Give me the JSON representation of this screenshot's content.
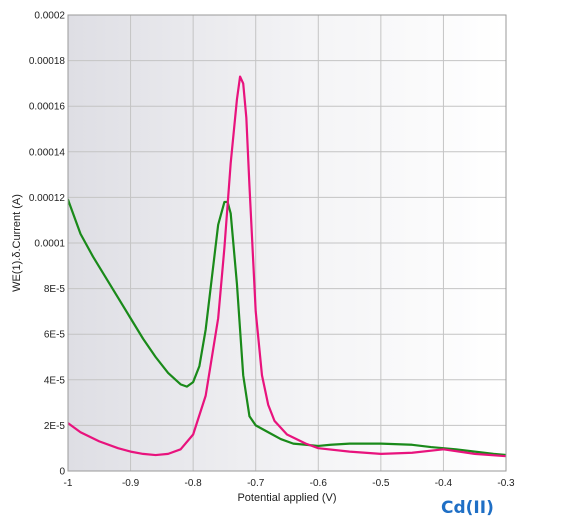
{
  "chart_data": {
    "type": "line",
    "xlabel": "Potential applied (V)",
    "ylabel": "WE(1).δ.Current (A)",
    "xlim": [
      -1.0,
      -0.3
    ],
    "ylim": [
      0,
      0.0002
    ],
    "x_ticks": [
      -1,
      -0.9,
      -0.8,
      -0.7,
      -0.6,
      -0.5,
      -0.4,
      -0.3
    ],
    "x_tick_labels": [
      "-1",
      "-0.9",
      "-0.8",
      "-0.7",
      "-0.6",
      "-0.5",
      "-0.4",
      "-0.3"
    ],
    "y_ticks": [
      0,
      2e-05,
      4e-05,
      6e-05,
      8e-05,
      0.0001,
      0.00012,
      0.00014,
      0.00016,
      0.00018,
      0.0002
    ],
    "y_tick_labels": [
      "0",
      "2E-5",
      "4E-5",
      "6E-5",
      "8E-5",
      "0.0001",
      "0.00012",
      "0.00014",
      "0.00016",
      "0.00018",
      "0.0002"
    ],
    "grid": true,
    "annotation": "Cd(II)",
    "annotation_color": "#1f6fc5",
    "series": [
      {
        "color": "#1a8a1a",
        "x": [
          -1.0,
          -0.98,
          -0.96,
          -0.94,
          -0.92,
          -0.9,
          -0.88,
          -0.86,
          -0.84,
          -0.82,
          -0.81,
          -0.8,
          -0.79,
          -0.78,
          -0.77,
          -0.76,
          -0.75,
          -0.745,
          -0.74,
          -0.73,
          -0.72,
          -0.71,
          -0.7,
          -0.68,
          -0.66,
          -0.64,
          -0.62,
          -0.6,
          -0.58,
          -0.55,
          -0.5,
          -0.45,
          -0.42,
          -0.4,
          -0.38,
          -0.35,
          -0.32,
          -0.3
        ],
        "y": [
          0.000119,
          0.000104,
          9.4e-05,
          8.5e-05,
          7.6e-05,
          6.7e-05,
          5.8e-05,
          5e-05,
          4.3e-05,
          3.8e-05,
          3.7e-05,
          3.9e-05,
          4.6e-05,
          6.2e-05,
          8.5e-05,
          0.000108,
          0.000118,
          0.000118,
          0.000113,
          8.2e-05,
          4.2e-05,
          2.4e-05,
          2e-05,
          1.7e-05,
          1.4e-05,
          1.2e-05,
          1.15e-05,
          1.1e-05,
          1.15e-05,
          1.2e-05,
          1.2e-05,
          1.15e-05,
          1.05e-05,
          1e-05,
          9.5e-06,
          8.5e-06,
          7.5e-06,
          7e-06
        ]
      },
      {
        "color": "#e8137d",
        "x": [
          -1.0,
          -0.98,
          -0.95,
          -0.92,
          -0.9,
          -0.88,
          -0.86,
          -0.84,
          -0.82,
          -0.8,
          -0.78,
          -0.76,
          -0.75,
          -0.74,
          -0.73,
          -0.725,
          -0.72,
          -0.715,
          -0.71,
          -0.7,
          -0.69,
          -0.68,
          -0.67,
          -0.65,
          -0.62,
          -0.6,
          -0.55,
          -0.5,
          -0.45,
          -0.4,
          -0.35,
          -0.3
        ],
        "y": [
          2.1e-05,
          1.7e-05,
          1.3e-05,
          1e-05,
          8.5e-06,
          7.5e-06,
          7e-06,
          7.5e-06,
          9.5e-06,
          1.6e-05,
          3.3e-05,
          6.7e-05,
          9.8e-05,
          0.000135,
          0.000163,
          0.000173,
          0.00017,
          0.000155,
          0.000125,
          7e-05,
          4.2e-05,
          2.9e-05,
          2.2e-05,
          1.6e-05,
          1.2e-05,
          1e-05,
          8.5e-06,
          7.5e-06,
          8e-06,
          9.5e-06,
          7.5e-06,
          6.5e-06
        ]
      }
    ]
  }
}
